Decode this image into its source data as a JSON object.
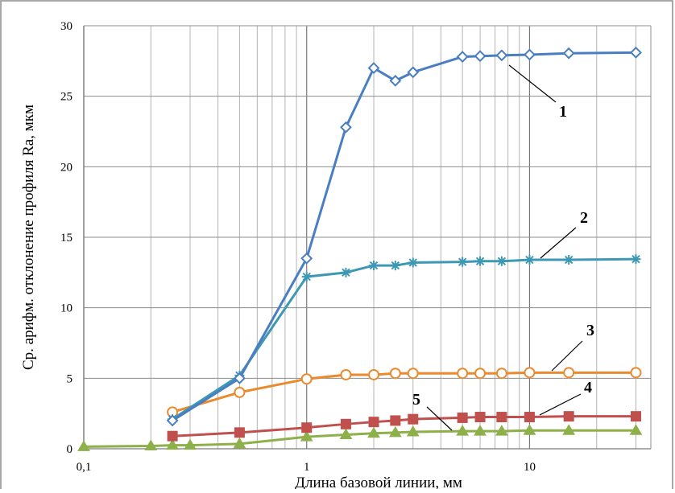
{
  "chart_data": {
    "type": "line",
    "xscale": "log",
    "xlim": [
      0.1,
      35
    ],
    "ylim": [
      0,
      30
    ],
    "xlabel": "Длина базовой линии, мм",
    "ylabel": "Ср. арифм. отклонение профиля Ra, мкм",
    "x_ticks": [
      {
        "value": 0.1,
        "label": "0,1"
      },
      {
        "value": 1,
        "label": "1"
      },
      {
        "value": 10,
        "label": "10"
      }
    ],
    "y_ticks": [
      {
        "value": 0,
        "label": "0"
      },
      {
        "value": 5,
        "label": "5"
      },
      {
        "value": 10,
        "label": "10"
      },
      {
        "value": 15,
        "label": "15"
      },
      {
        "value": 20,
        "label": "20"
      },
      {
        "value": 25,
        "label": "25"
      },
      {
        "value": 30,
        "label": "30"
      }
    ],
    "grid": true,
    "series": [
      {
        "name": "1",
        "color": "#4a7ec2",
        "marker": "diamond",
        "x": [
          0.25,
          0.5,
          1,
          1.5,
          2,
          2.5,
          3,
          5,
          6,
          7.5,
          10,
          15,
          30
        ],
        "values": [
          2.0,
          5.0,
          13.5,
          22.8,
          27.0,
          26.1,
          26.7,
          27.8,
          27.85,
          27.9,
          27.95,
          28.05,
          28.1
        ]
      },
      {
        "name": "2",
        "color": "#3d98b3",
        "marker": "star",
        "x": [
          0.25,
          0.5,
          1,
          1.5,
          2,
          2.5,
          3,
          5,
          6,
          7.5,
          10,
          15,
          30
        ],
        "values": [
          2.1,
          5.2,
          12.2,
          12.5,
          13.0,
          13.0,
          13.2,
          13.25,
          13.3,
          13.3,
          13.4,
          13.4,
          13.45
        ]
      },
      {
        "name": "3",
        "color": "#ea8a2e",
        "marker": "circle",
        "x": [
          0.25,
          0.5,
          1,
          1.5,
          2,
          2.5,
          3,
          5,
          6,
          7.5,
          10,
          15,
          30
        ],
        "values": [
          2.6,
          4.0,
          4.95,
          5.25,
          5.25,
          5.35,
          5.35,
          5.35,
          5.35,
          5.35,
          5.4,
          5.4,
          5.4
        ]
      },
      {
        "name": "4",
        "color": "#c0504d",
        "marker": "square",
        "x": [
          0.25,
          0.5,
          1,
          1.5,
          2,
          2.5,
          3,
          5,
          6,
          7.5,
          10,
          15,
          30
        ],
        "values": [
          0.9,
          1.15,
          1.5,
          1.75,
          1.9,
          2.0,
          2.1,
          2.2,
          2.25,
          2.25,
          2.25,
          2.3,
          2.3
        ]
      },
      {
        "name": "5",
        "color": "#8db04a",
        "marker": "triangle",
        "x": [
          0.1,
          0.2,
          0.25,
          0.3,
          0.5,
          1,
          1.5,
          2,
          2.5,
          3,
          5,
          6,
          7.5,
          10,
          15,
          30
        ],
        "values": [
          0.15,
          0.2,
          0.25,
          0.25,
          0.35,
          0.85,
          1.0,
          1.1,
          1.15,
          1.2,
          1.25,
          1.25,
          1.25,
          1.3,
          1.3,
          1.3
        ]
      }
    ],
    "annotations": [
      "1",
      "2",
      "3",
      "4",
      "5"
    ]
  }
}
